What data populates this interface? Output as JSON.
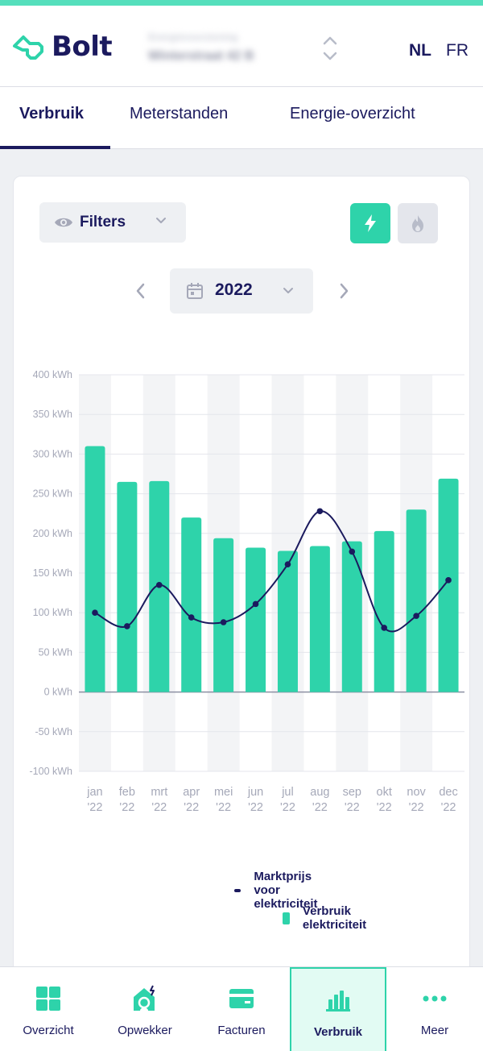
{
  "brand": {
    "name": "Bolt"
  },
  "address": {
    "line1": "Energievoorziening",
    "line2": "Winterstraat 42 B"
  },
  "languages": {
    "nl": "NL",
    "fr": "FR"
  },
  "tabs": [
    {
      "label": "Verbruik",
      "active": true
    },
    {
      "label": "Meterstanden",
      "active": false
    },
    {
      "label": "Energie-overzicht",
      "active": false
    }
  ],
  "controls": {
    "filters_label": "Filters",
    "year": "2022"
  },
  "colors": {
    "accent": "#2ed3aa",
    "navy": "#1b1a5e",
    "band": "#f3f4f6"
  },
  "chart_data": {
    "type": "bar",
    "categories": [
      [
        "jan",
        "'22"
      ],
      [
        "feb",
        "'22"
      ],
      [
        "mrt",
        "'22"
      ],
      [
        "apr",
        "'22"
      ],
      [
        "mei",
        "'22"
      ],
      [
        "jun",
        "'22"
      ],
      [
        "jul",
        "'22"
      ],
      [
        "aug",
        "'22"
      ],
      [
        "sep",
        "'22"
      ],
      [
        "okt",
        "'22"
      ],
      [
        "nov",
        "'22"
      ],
      [
        "dec",
        "'22"
      ]
    ],
    "y_ticks": [
      "400 kWh",
      "350 kWh",
      "300 kWh",
      "250 kWh",
      "200 kWh",
      "150 kWh",
      "100 kWh",
      "50 kWh",
      "0 kWh",
      "-50 kWh",
      "-100 kWh"
    ],
    "ylim": [
      -100,
      400
    ],
    "grid": true,
    "legend_position": "bottom-right",
    "series": [
      {
        "name": "Verbruik elektriciteit",
        "kind": "bar",
        "color": "#2ed3aa",
        "values": [
          310,
          265,
          266,
          220,
          194,
          182,
          178,
          184,
          190,
          203,
          230,
          269
        ]
      },
      {
        "name": "Marktprijs voor elektriciteit",
        "kind": "line",
        "color": "#1b1a5e",
        "values": [
          100,
          83,
          135,
          94,
          88,
          111,
          161,
          228,
          177,
          81,
          96,
          141
        ]
      }
    ]
  },
  "bottom_nav": [
    {
      "label": "Overzicht",
      "icon": "grid-icon",
      "active": false
    },
    {
      "label": "Opwekker",
      "icon": "house-solar-icon",
      "active": false
    },
    {
      "label": "Facturen",
      "icon": "card-icon",
      "active": false
    },
    {
      "label": "Verbruik",
      "icon": "bar-chart-icon",
      "active": true
    },
    {
      "label": "Meer",
      "icon": "more-dots-icon",
      "active": false
    }
  ]
}
